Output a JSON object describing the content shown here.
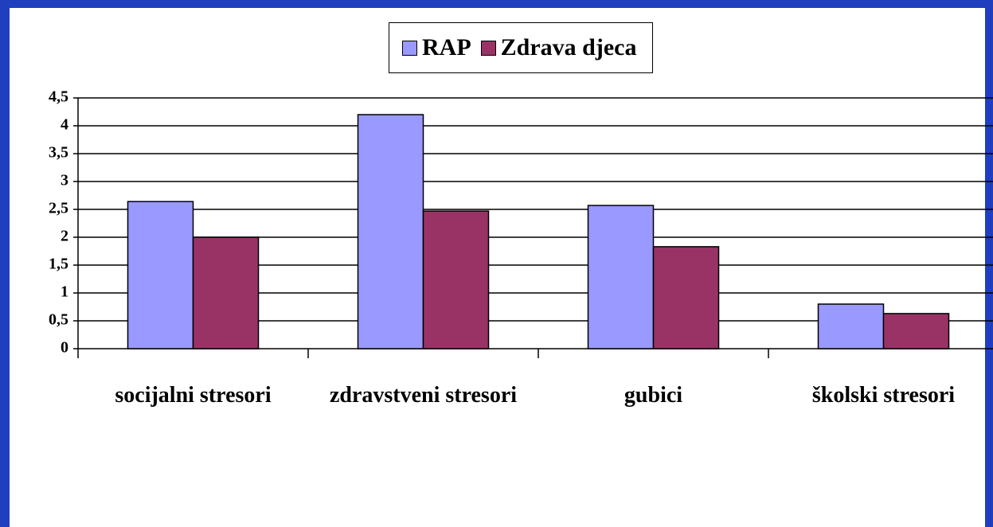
{
  "chart_data": {
    "type": "bar",
    "categories": [
      "socijalni stresori",
      "zdravstveni stresori",
      "gubici",
      "školski stresori"
    ],
    "series": [
      {
        "name": "RAP",
        "color": "#9999ff",
        "values": [
          2.64,
          4.2,
          2.57,
          0.8
        ]
      },
      {
        "name": "Zdrava djeca",
        "color": "#993366",
        "values": [
          2.0,
          2.47,
          1.83,
          0.63
        ]
      }
    ],
    "ylim": [
      0,
      4.5
    ],
    "yticks": [
      0,
      {
        "value": 0.5,
        "label": "0,5"
      },
      1,
      {
        "value": 1.5,
        "label": "1,5"
      },
      2,
      {
        "value": 2.5,
        "label": "2,5"
      },
      3,
      {
        "value": 3.5,
        "label": "3,5"
      },
      4,
      {
        "value": 4.5,
        "label": "4,5"
      }
    ],
    "grid": true,
    "legend": "top"
  }
}
